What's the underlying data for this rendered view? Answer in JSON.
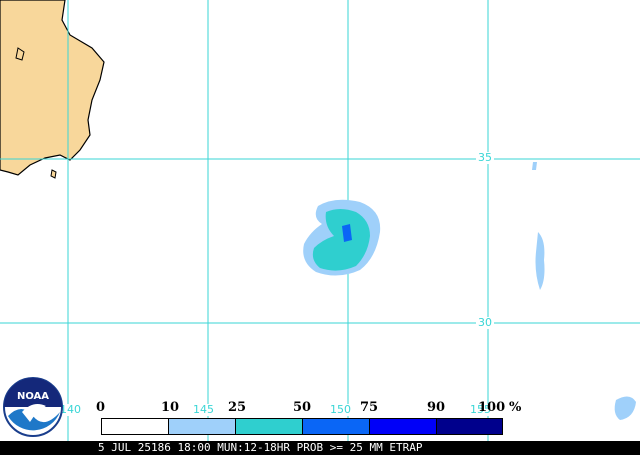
{
  "map": {
    "latitude_labels": [
      "35",
      "30"
    ],
    "longitude_labels": [
      "140",
      "145",
      "150",
      "155"
    ],
    "legend": {
      "values": [
        "0",
        "10",
        "25",
        "50",
        "75",
        "90",
        "100"
      ],
      "unit": "%",
      "colors": [
        "#ffffff",
        "#9fd0fa",
        "#2fcfcf",
        "#0a66f6",
        "#0000f8",
        "#00008c"
      ]
    },
    "caption": "5 JUL 25186 18:00 MUN:12-18HR PROB >= 25 MM ETRAP",
    "logo_text": "NOAA",
    "colors": {
      "land": "#f8d79b",
      "grid": "#3ad6d6",
      "coast": "#000000"
    }
  }
}
